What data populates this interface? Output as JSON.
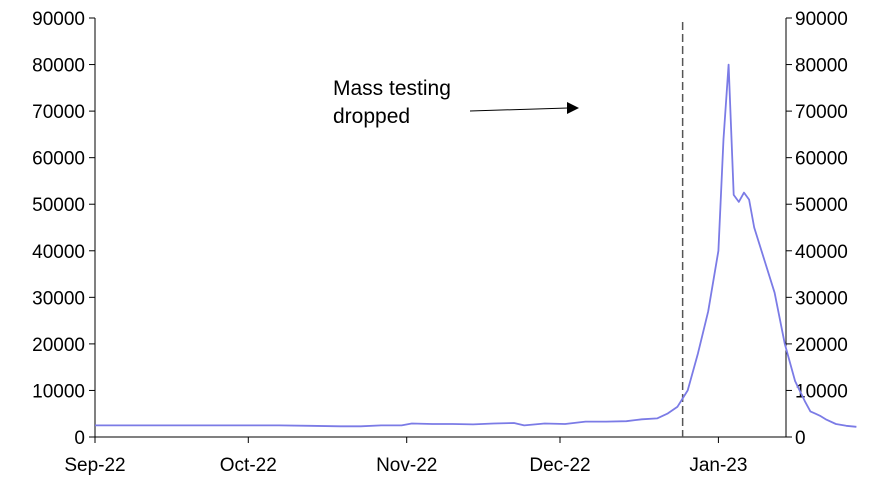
{
  "chart_data": {
    "type": "line",
    "title": "",
    "xlabel": "",
    "ylabel": "",
    "ylim": [
      0,
      90000
    ],
    "yticks": [
      0,
      10000,
      20000,
      30000,
      40000,
      50000,
      60000,
      70000,
      80000,
      90000
    ],
    "xlim": [
      "2022-09-01",
      "2023-01-21"
    ],
    "xticks": [
      {
        "date": "2022-09-01",
        "label": "Sep-22"
      },
      {
        "date": "2022-10-01",
        "label": "Oct-22"
      },
      {
        "date": "2022-11-01",
        "label": "Nov-22"
      },
      {
        "date": "2022-12-01",
        "label": "Dec-22"
      },
      {
        "date": "2023-01-01",
        "label": "Jan-23"
      }
    ],
    "grid": false,
    "legend": "none",
    "colors": {
      "series": "#7b7be6",
      "axis": "#000000",
      "marker_line": "#555555"
    },
    "series": [
      {
        "points": [
          [
            "2022-09-01",
            2500
          ],
          [
            "2022-09-10",
            2500
          ],
          [
            "2022-09-20",
            2500
          ],
          [
            "2022-10-01",
            2500
          ],
          [
            "2022-10-07",
            2500
          ],
          [
            "2022-10-13",
            2400
          ],
          [
            "2022-10-19",
            2300
          ],
          [
            "2022-10-23",
            2300
          ],
          [
            "2022-10-27",
            2500
          ],
          [
            "2022-10-31",
            2500
          ],
          [
            "2022-11-02",
            2900
          ],
          [
            "2022-11-06",
            2800
          ],
          [
            "2022-11-10",
            2800
          ],
          [
            "2022-11-14",
            2700
          ],
          [
            "2022-11-18",
            2900
          ],
          [
            "2022-11-22",
            3000
          ],
          [
            "2022-11-24",
            2500
          ],
          [
            "2022-11-28",
            2900
          ],
          [
            "2022-12-02",
            2800
          ],
          [
            "2022-12-06",
            3300
          ],
          [
            "2022-12-10",
            3300
          ],
          [
            "2022-12-14",
            3400
          ],
          [
            "2022-12-17",
            3800
          ],
          [
            "2022-12-20",
            4000
          ],
          [
            "2022-12-22",
            5000
          ],
          [
            "2022-12-24",
            6500
          ],
          [
            "2022-12-26",
            10000
          ],
          [
            "2022-12-28",
            18000
          ],
          [
            "2022-12-30",
            27000
          ],
          [
            "2023-01-01",
            40000
          ],
          [
            "2023-01-02",
            64000
          ],
          [
            "2023-01-03",
            80000
          ],
          [
            "2023-01-04",
            52000
          ],
          [
            "2023-01-05",
            50500
          ],
          [
            "2023-01-06",
            52500
          ],
          [
            "2023-01-07",
            51000
          ],
          [
            "2023-01-08",
            45000
          ],
          [
            "2023-01-10",
            38000
          ],
          [
            "2023-01-12",
            31000
          ],
          [
            "2023-01-14",
            20000
          ],
          [
            "2023-01-16",
            12000
          ],
          [
            "2023-01-18",
            7500
          ],
          [
            "2023-01-19",
            5500
          ],
          [
            "2023-01-20",
            5000
          ],
          [
            "2023-01-21",
            4500
          ],
          [
            "2023-01-22",
            3800
          ],
          [
            "2023-01-24",
            2800
          ],
          [
            "2023-01-26",
            2400
          ],
          [
            "2023-01-28",
            2200
          ]
        ]
      }
    ],
    "vertical_line": {
      "date": "2022-12-25",
      "style": "dashed"
    },
    "annotation": {
      "lines": [
        "Mass testing",
        "dropped"
      ]
    }
  }
}
